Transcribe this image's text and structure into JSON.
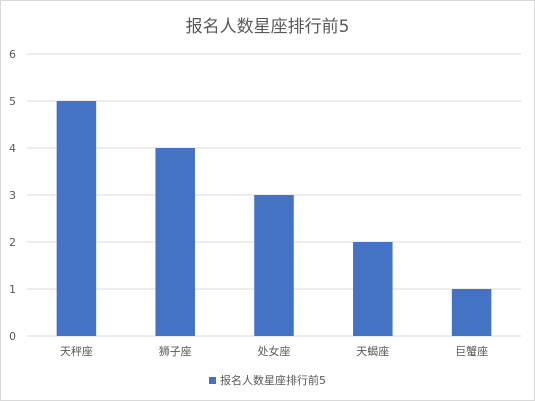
{
  "chart_data": {
    "type": "bar",
    "title": "报名人数星座排行前5",
    "categories": [
      "天秤座",
      "狮子座",
      "处女座",
      "天蝎座",
      "巨蟹座"
    ],
    "series": [
      {
        "name": "报名人数星座排行前5",
        "values": [
          5,
          4,
          3,
          2,
          1
        ],
        "color": "#4472c4"
      }
    ],
    "ylim": [
      0,
      6
    ],
    "yticks": [
      0,
      1,
      2,
      3,
      4,
      5,
      6
    ],
    "grid": true,
    "legend_position": "bottom",
    "colors": {
      "grid": "#d9d9d9",
      "text": "#595959"
    }
  }
}
